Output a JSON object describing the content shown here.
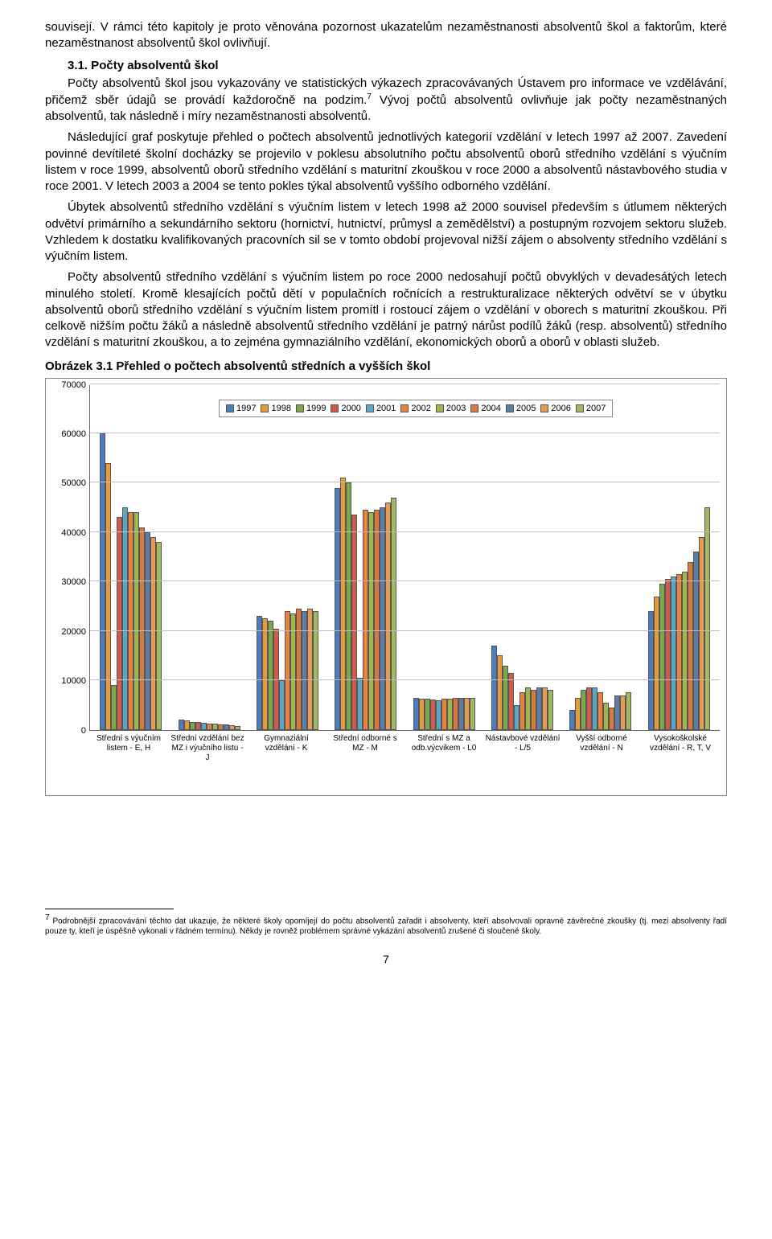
{
  "text": {
    "p0": "souvisejí. V rámci této kapitoly je proto věnována pozornost ukazatelům nezaměstnanosti absolventů škol a faktorům, které nezaměstnanost absolventů škol ovlivňují.",
    "sec_title": "3.1. Počty absolventů škol",
    "p1a": "Počty absolventů škol jsou vykazovány ve statistických výkazech zpracovávaných Ústavem pro informace ve vzdělávání, přičemž sběr údajů se provádí každoročně na podzim.",
    "p1b": " Vývoj počtů absolventů ovlivňuje jak počty nezaměstnaných absolventů, tak následně i míry nezaměstnanosti absolventů.",
    "p2": "Následující graf poskytuje přehled o počtech absolventů jednotlivých kategorií vzdělání v letech 1997 až 2007. Zavedení povinné devítileté školní docházky se projevilo v poklesu absolutního počtu absolventů oborů středního vzdělání s výučním listem v roce 1999, absolventů oborů středního vzdělání s maturitní zkouškou v roce 2000 a absolventů nástavbového studia v roce 2001. V letech 2003 a 2004 se tento pokles týkal absolventů vyššího odborného vzdělání.",
    "p3": "Úbytek absolventů středního vzdělání s výučním listem v letech 1998 až 2000 souvisel především s útlumem některých odvětví primárního a sekundárního sektoru (hornictví, hutnictví, průmysl a zemědělství) a postupným rozvojem sektoru služeb. Vzhledem k dostatku kvalifikovaných pracovních sil se v tomto období projevoval nižší zájem o absolventy středního vzdělání s výučním listem.",
    "p4": "Počty absolventů středního vzdělání s výučním listem po roce 2000 nedosahují počtů obvyklých v devadesátých letech minulého století. Kromě klesajících počtů dětí v populačních ročnících a restrukturalizace některých odvětví se v úbytku absolventů oborů středního vzdělání s výučním listem promítl i rostoucí zájem o vzdělání v oborech s maturitní zkouškou. Při celkově nižším počtu žáků a následně absolventů středního vzdělání je patrný nárůst podílů žáků (resp. absolventů) středního vzdělání s maturitní zkouškou, a to zejména gymnaziálního vzdělání, ekonomických oborů a oborů v oblasti služeb.",
    "chart_title": "Obrázek 3.1 Přehled o počtech absolventů středních a vyšších škol",
    "footnote_marker": "7",
    "footnote": "Podrobnější zpracovávání těchto dat ukazuje, že některé školy opomíjejí do počtu absolventů zařadit i absolventy, kteří absolvovali opravné závěrečné zkoušky (tj. mezi absolventy řadí pouze ty, kteří je úspěšně vykonali v řádném termínu). Někdy je rovněž problémem správné vykázání absolventů zrušené či sloučené školy.",
    "page_num": "7"
  },
  "chart": {
    "ymax": 70000,
    "yticks": [
      0,
      10000,
      20000,
      30000,
      40000,
      50000,
      60000,
      70000
    ],
    "years": [
      "1997",
      "1998",
      "1999",
      "2000",
      "2001",
      "2002",
      "2003",
      "2004",
      "2005",
      "2006",
      "2007"
    ],
    "year_colors": [
      "#4a7cbf",
      "#e59a3c",
      "#7aa84a",
      "#d15a4a",
      "#5aa6c4",
      "#e8823c",
      "#9fb64f",
      "#da7a3a",
      "#5c7da6",
      "#e79a52",
      "#a0b860"
    ],
    "categories": [
      "Střední s výučním listem - E, H",
      "Střední vzdělání bez MZ i výučního listu - J",
      "Gymnaziální vzdělání - K",
      "Střední odborné s MZ - M",
      "Střední s MZ a odb.výcvikem - L0",
      "Nástavbové vzdělání - L/5",
      "Vyšší odborné vzdělání - N",
      "Vysokoškolské vzdělání - R, T, V"
    ],
    "data": [
      [
        60000,
        54000,
        9000,
        43000,
        45000,
        44000,
        44000,
        41000,
        40000,
        39000,
        38000
      ],
      [
        2000,
        1800,
        1600,
        1500,
        1400,
        1300,
        1200,
        1100,
        1000,
        900,
        800
      ],
      [
        23000,
        22500,
        22000,
        20500,
        10000,
        24000,
        23500,
        24500,
        24000,
        24500,
        24000
      ],
      [
        49000,
        51000,
        50000,
        43500,
        10500,
        44500,
        44000,
        44500,
        45000,
        46000,
        47000
      ],
      [
        6500,
        6300,
        6200,
        6100,
        6000,
        6200,
        6300,
        6400,
        6500,
        6500,
        6500
      ],
      [
        17000,
        15000,
        13000,
        11500,
        5000,
        7500,
        8500,
        8000,
        8500,
        8500,
        8000
      ],
      [
        4000,
        6500,
        8000,
        8500,
        8500,
        7500,
        5500,
        4500,
        7000,
        7000,
        7500
      ],
      [
        24000,
        27000,
        29500,
        30500,
        31000,
        31500,
        32000,
        34000,
        36000,
        39000,
        45000
      ]
    ],
    "grid_color": "#bdbdbd",
    "label_fontsize": 11
  }
}
